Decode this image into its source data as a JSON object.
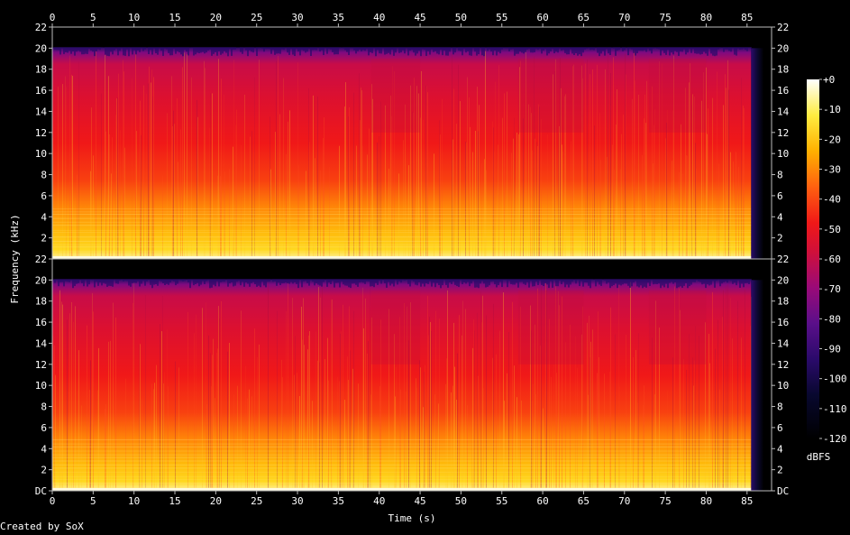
{
  "chart_data": {
    "type": "heatmap",
    "title": "",
    "xlabel": "Time (s)",
    "ylabel": "Frequency (kHz)",
    "xlim": [
      0,
      88
    ],
    "ylim": [
      0,
      22
    ],
    "x_ticks": [
      0,
      5,
      10,
      15,
      20,
      25,
      30,
      35,
      40,
      45,
      50,
      55,
      60,
      65,
      70,
      75,
      80,
      85
    ],
    "x_tick_labels": [
      "0",
      "5",
      "10",
      "15",
      "20",
      "25",
      "30",
      "35",
      "40",
      "45",
      "50",
      "55",
      "60",
      "65",
      "70",
      "75",
      "80",
      "85"
    ],
    "y_ticks": [
      0,
      2,
      4,
      6,
      8,
      10,
      12,
      14,
      16,
      18,
      20,
      22
    ],
    "y_tick_labels_top": [
      "22",
      "2",
      "4",
      "6",
      "8",
      "10",
      "12",
      "14",
      "16",
      "18",
      "20",
      "22"
    ],
    "y_tick_labels_bottom": [
      "DC",
      "2",
      "4",
      "6",
      "8",
      "10",
      "12",
      "14",
      "16",
      "18",
      "20",
      "22"
    ],
    "channels": 2,
    "audio_end_s": 85.5,
    "lowpass_khz": 20,
    "colorbar": {
      "label": "dBFS",
      "range": [
        -120,
        0
      ],
      "ticks": [
        0,
        -10,
        -20,
        -30,
        -40,
        -50,
        -60,
        -70,
        -80,
        -90,
        -100,
        -110,
        -120
      ],
      "tick_labels": [
        "+0",
        "-10",
        "-20",
        "-30",
        "-40",
        "-50",
        "-60",
        "-70",
        "-80",
        "-90",
        "-100",
        "-110",
        "-120"
      ]
    }
  },
  "credit": "Created by SoX"
}
